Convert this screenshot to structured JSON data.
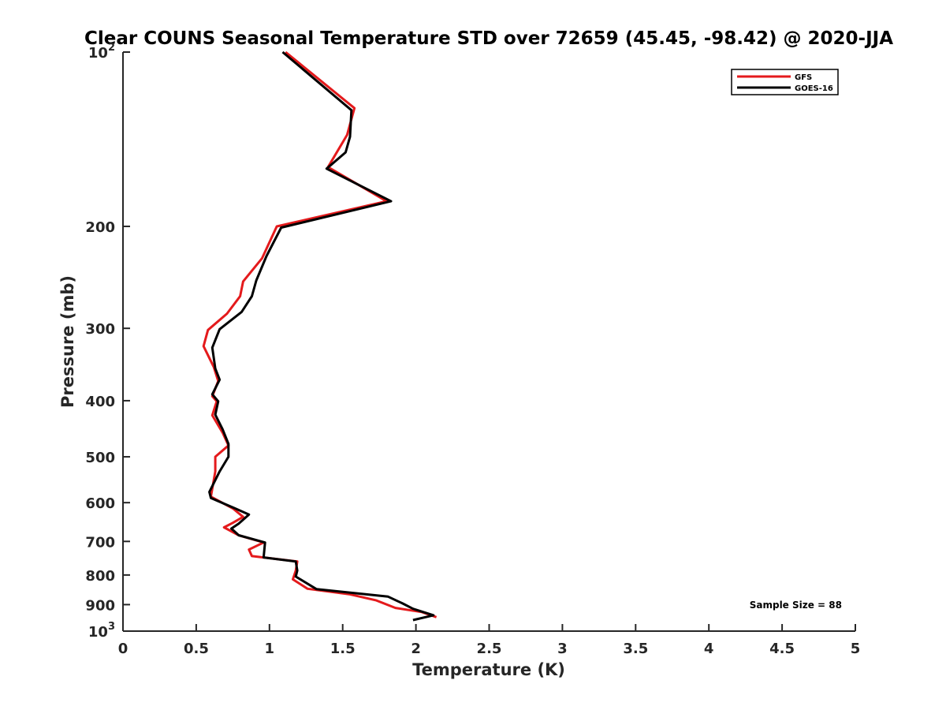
{
  "chart_data": {
    "type": "line",
    "title": "Clear COUNS Seasonal Temperature STD over 72659 (45.45, -98.42) @ 2020-JJA",
    "xlabel": "Temperature (K)",
    "ylabel": "Pressure (mb)",
    "xlim": [
      0,
      5
    ],
    "ylim": [
      100,
      1000
    ],
    "y_scale": "log",
    "y_reversed": true,
    "x_ticks": [
      0,
      0.5,
      1,
      1.5,
      2,
      2.5,
      3,
      3.5,
      4,
      4.5,
      5
    ],
    "x_tick_labels": [
      "0",
      "0.5",
      "1",
      "1.5",
      "2",
      "2.5",
      "3",
      "3.5",
      "4",
      "4.5",
      "5"
    ],
    "y_ticks": [
      {
        "value": 100,
        "base": "10",
        "exp": "2"
      },
      {
        "value": 200,
        "label": "200"
      },
      {
        "value": 300,
        "label": "300"
      },
      {
        "value": 400,
        "label": "400"
      },
      {
        "value": 500,
        "label": "500"
      },
      {
        "value": 600,
        "label": "600"
      },
      {
        "value": 700,
        "label": "700"
      },
      {
        "value": 800,
        "label": "800"
      },
      {
        "value": 900,
        "label": "900"
      },
      {
        "value": 1000,
        "base": "10",
        "exp": "3"
      }
    ],
    "grid": false,
    "legend_position": "top-right",
    "series": [
      {
        "name": "GFS",
        "color": "#e41a1c",
        "points": [
          [
            1.11,
            100
          ],
          [
            1.58,
            125
          ],
          [
            1.53,
            139
          ],
          [
            1.4,
            158
          ],
          [
            1.8,
            181
          ],
          [
            1.05,
            200
          ],
          [
            0.95,
            227
          ],
          [
            0.82,
            249
          ],
          [
            0.8,
            264
          ],
          [
            0.71,
            283
          ],
          [
            0.58,
            302
          ],
          [
            0.55,
            322
          ],
          [
            0.62,
            350
          ],
          [
            0.65,
            370
          ],
          [
            0.61,
            393
          ],
          [
            0.64,
            401
          ],
          [
            0.61,
            424
          ],
          [
            0.68,
            454
          ],
          [
            0.72,
            478
          ],
          [
            0.63,
            500
          ],
          [
            0.63,
            530
          ],
          [
            0.6,
            586
          ],
          [
            0.75,
            614
          ],
          [
            0.82,
            635
          ],
          [
            0.75,
            650
          ],
          [
            0.69,
            662
          ],
          [
            0.79,
            683
          ],
          [
            0.96,
            703
          ],
          [
            0.86,
            723
          ],
          [
            0.88,
            742
          ],
          [
            1.19,
            758
          ],
          [
            1.18,
            786
          ],
          [
            1.16,
            814
          ],
          [
            1.26,
            845
          ],
          [
            1.55,
            864
          ],
          [
            1.73,
            885
          ],
          [
            1.86,
            912
          ],
          [
            2.04,
            927
          ],
          [
            2.14,
            946
          ]
        ]
      },
      {
        "name": "GOES-16",
        "color": "#000000",
        "points": [
          [
            1.09,
            100
          ],
          [
            1.56,
            126
          ],
          [
            1.55,
            140
          ],
          [
            1.52,
            149
          ],
          [
            1.39,
            159
          ],
          [
            1.83,
            181
          ],
          [
            1.08,
            201
          ],
          [
            0.98,
            225
          ],
          [
            0.91,
            248
          ],
          [
            0.88,
            264
          ],
          [
            0.81,
            281
          ],
          [
            0.66,
            301
          ],
          [
            0.61,
            324
          ],
          [
            0.63,
            352
          ],
          [
            0.66,
            368
          ],
          [
            0.61,
            390
          ],
          [
            0.65,
            401
          ],
          [
            0.63,
            423
          ],
          [
            0.68,
            448
          ],
          [
            0.72,
            475
          ],
          [
            0.72,
            500
          ],
          [
            0.66,
            530
          ],
          [
            0.59,
            575
          ],
          [
            0.6,
            589
          ],
          [
            0.76,
            613
          ],
          [
            0.86,
            629
          ],
          [
            0.79,
            652
          ],
          [
            0.74,
            665
          ],
          [
            0.79,
            683
          ],
          [
            0.97,
            703
          ],
          [
            0.96,
            746
          ],
          [
            1.18,
            758
          ],
          [
            1.19,
            786
          ],
          [
            1.18,
            805
          ],
          [
            1.32,
            846
          ],
          [
            1.81,
            872
          ],
          [
            1.91,
            896
          ],
          [
            1.98,
            915
          ],
          [
            2.12,
            939
          ],
          [
            1.98,
            957
          ]
        ]
      }
    ],
    "annotation": "Sample Size = 88"
  }
}
